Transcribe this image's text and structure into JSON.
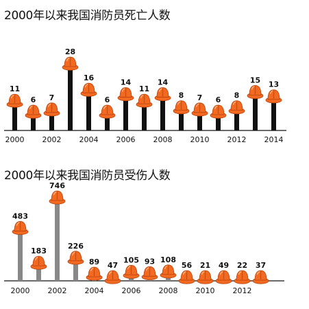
{
  "chart_data": [
    {
      "type": "bar",
      "title": "2000年以来我国消防员死亡人数",
      "categories": [
        "2000",
        "2001",
        "2002",
        "2003",
        "2004",
        "2005",
        "2006",
        "2007",
        "2008",
        "2009",
        "2010",
        "2011",
        "2012",
        "2013",
        "2014"
      ],
      "values": [
        11,
        6,
        7,
        28,
        16,
        6,
        14,
        11,
        14,
        8,
        7,
        6,
        8,
        15,
        13
      ],
      "xticks": [
        "2000",
        "2002",
        "2004",
        "2006",
        "2008",
        "2010",
        "2012",
        "2014"
      ],
      "ylim": [
        0,
        28
      ],
      "bar_color": "#111111",
      "helmet_color": "#f26a21",
      "grid": false
    },
    {
      "type": "bar",
      "title": "2000年以来我国消防员受伤人数",
      "categories": [
        "2000",
        "2001",
        "2002",
        "2003",
        "2004",
        "2005",
        "2006",
        "2007",
        "2008",
        "2009",
        "2010",
        "2011",
        "2012",
        "2013"
      ],
      "values": [
        483,
        183,
        746,
        226,
        89,
        47,
        105,
        93,
        108,
        56,
        21,
        49,
        22,
        37
      ],
      "xticks": [
        "2000",
        "2002",
        "2004",
        "2006",
        "2008",
        "2010",
        "2012"
      ],
      "ylim": [
        0,
        746
      ],
      "bar_color": "#888888",
      "helmet_color": "#f26a21",
      "grid": false
    }
  ]
}
